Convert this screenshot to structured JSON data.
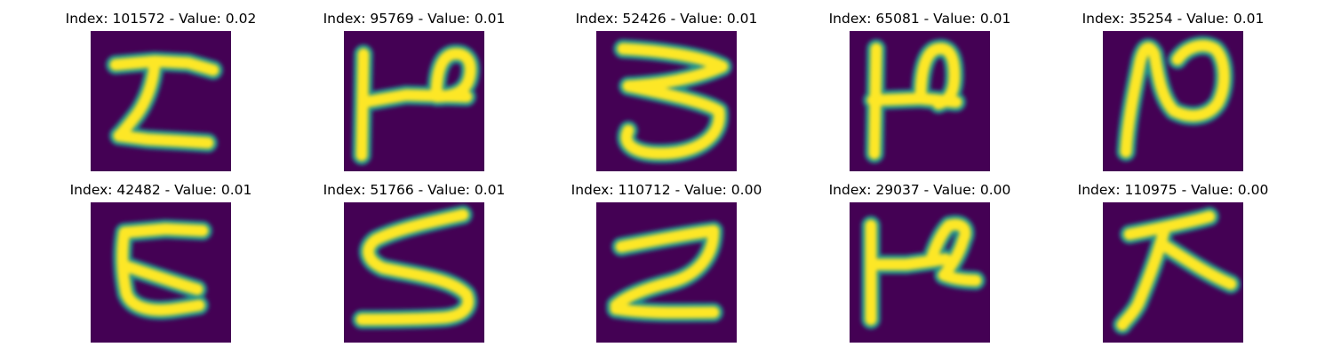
{
  "colors": {
    "background": "#440154",
    "edge": "#21918c",
    "core": "#fde725"
  },
  "samples": [
    {
      "title": "Index: 101572 - Value: 0.02",
      "glyph": "handwritten-I"
    },
    {
      "title": "Index: 95769 - Value: 0.01",
      "glyph": "handwritten-P"
    },
    {
      "title": "Index: 52426 - Value: 0.01",
      "glyph": "handwritten-3"
    },
    {
      "title": "Index: 65081 - Value: 0.01",
      "glyph": "handwritten-P"
    },
    {
      "title": "Index: 35254 - Value: 0.01",
      "glyph": "handwritten-N"
    },
    {
      "title": "Index: 42482 - Value: 0.01",
      "glyph": "handwritten-C"
    },
    {
      "title": "Index: 51766 - Value: 0.01",
      "glyph": "handwritten-S"
    },
    {
      "title": "Index: 110712 - Value: 0.00",
      "glyph": "handwritten-Z"
    },
    {
      "title": "Index: 29037 - Value: 0.00",
      "glyph": "handwritten-P"
    },
    {
      "title": "Index: 110975 - Value: 0.00",
      "glyph": "handwritten-X"
    }
  ]
}
